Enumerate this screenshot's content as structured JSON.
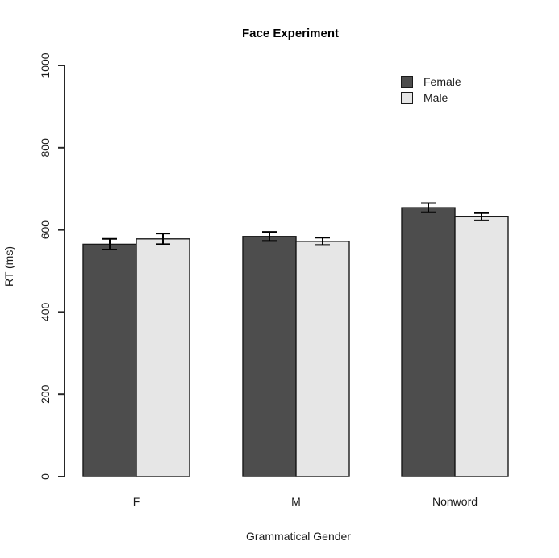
{
  "title": "Face Experiment",
  "chart_data": {
    "type": "bar",
    "title": "Face Experiment",
    "xlabel": "Grammatical Gender",
    "ylabel": "RT (ms)",
    "ylim": [
      0,
      1000
    ],
    "yticks": [
      0,
      200,
      400,
      600,
      800,
      1000
    ],
    "categories": [
      "F",
      "M",
      "Nonword"
    ],
    "series": [
      {
        "name": "Female",
        "color": "#4d4d4d",
        "values": [
          565,
          584,
          654
        ],
        "errors": [
          13,
          11,
          11
        ]
      },
      {
        "name": "Male",
        "color": "#e6e6e6",
        "values": [
          578,
          572,
          632
        ],
        "errors": [
          13,
          9,
          9
        ]
      }
    ],
    "error_bars": true,
    "grid": false,
    "legend_position": "top-right",
    "bar_border_color": "#1a1a1a",
    "axis_color": "#262626"
  }
}
